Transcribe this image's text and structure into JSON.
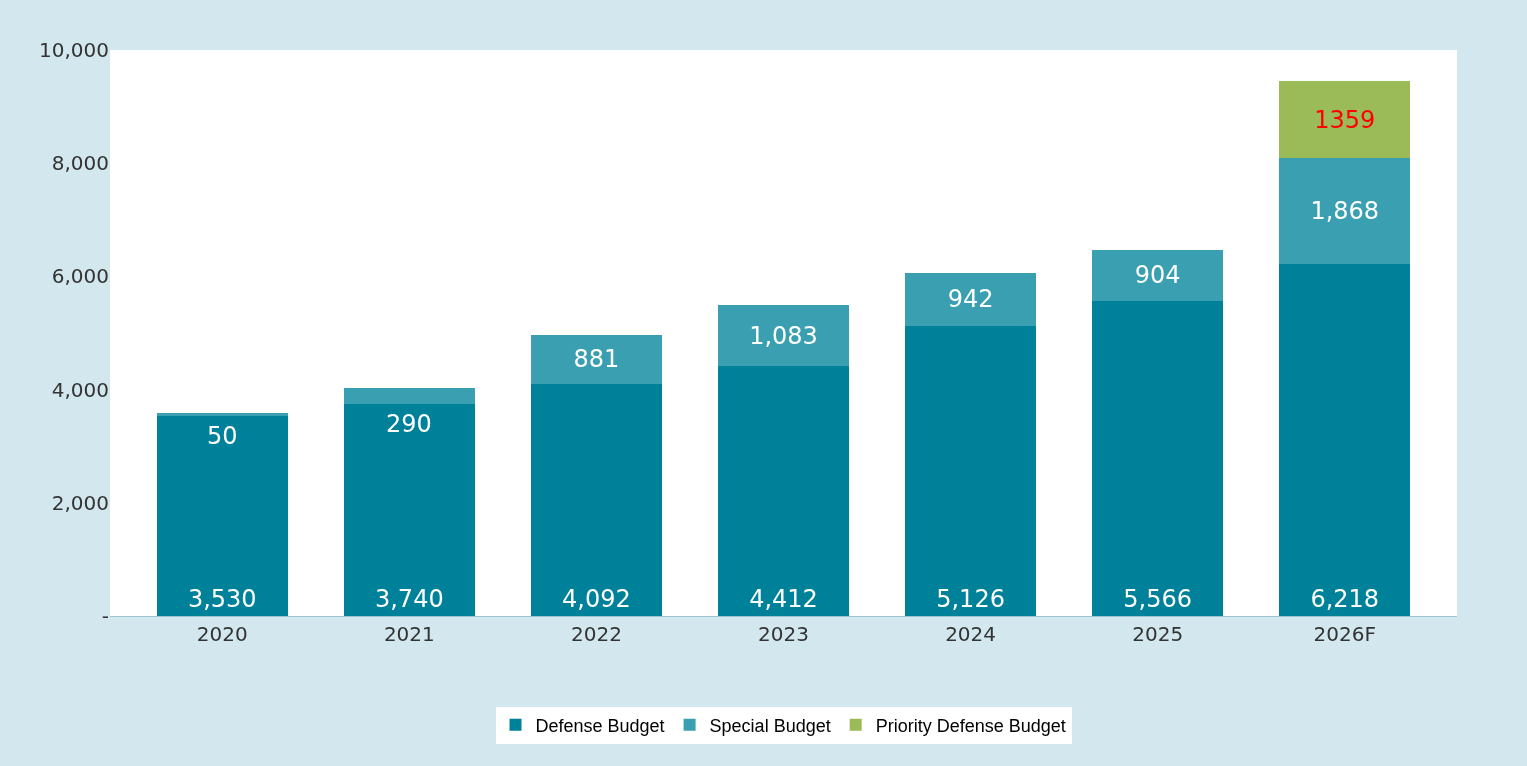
{
  "chart_data": {
    "type": "bar",
    "stacked": true,
    "categories": [
      "2020",
      "2021",
      "2022",
      "2023",
      "2024",
      "2025",
      "2026F"
    ],
    "series": [
      {
        "name": "Defense Budget",
        "color": "#00819a",
        "values": [
          3530,
          3740,
          4092,
          4412,
          5126,
          5566,
          6218
        ],
        "value_labels": [
          "3,530",
          "3,740",
          "4,092",
          "4,412",
          "5,126",
          "5,566",
          "6,218"
        ]
      },
      {
        "name": "Special Budget",
        "color": "#3a9fb1",
        "values": [
          50,
          290,
          881,
          1083,
          942,
          904,
          1868
        ],
        "value_labels": [
          "50",
          "290",
          "881",
          "1,083",
          "942",
          "904",
          "1,868"
        ]
      },
      {
        "name": "Priority Defense Budget",
        "color": "#9bbb59",
        "values": [
          null,
          null,
          null,
          null,
          null,
          null,
          1359
        ],
        "value_labels": [
          null,
          null,
          null,
          null,
          null,
          null,
          "1359"
        ]
      }
    ],
    "ylim": [
      0,
      10000
    ],
    "yticks": [
      {
        "value": 0,
        "label": "-"
      },
      {
        "value": 2000,
        "label": "2,000"
      },
      {
        "value": 4000,
        "label": "4,000"
      },
      {
        "value": 6000,
        "label": "6,000"
      },
      {
        "value": 8000,
        "label": "8,000"
      },
      {
        "value": 10000,
        "label": "10,000"
      }
    ],
    "legend": "bottom"
  }
}
